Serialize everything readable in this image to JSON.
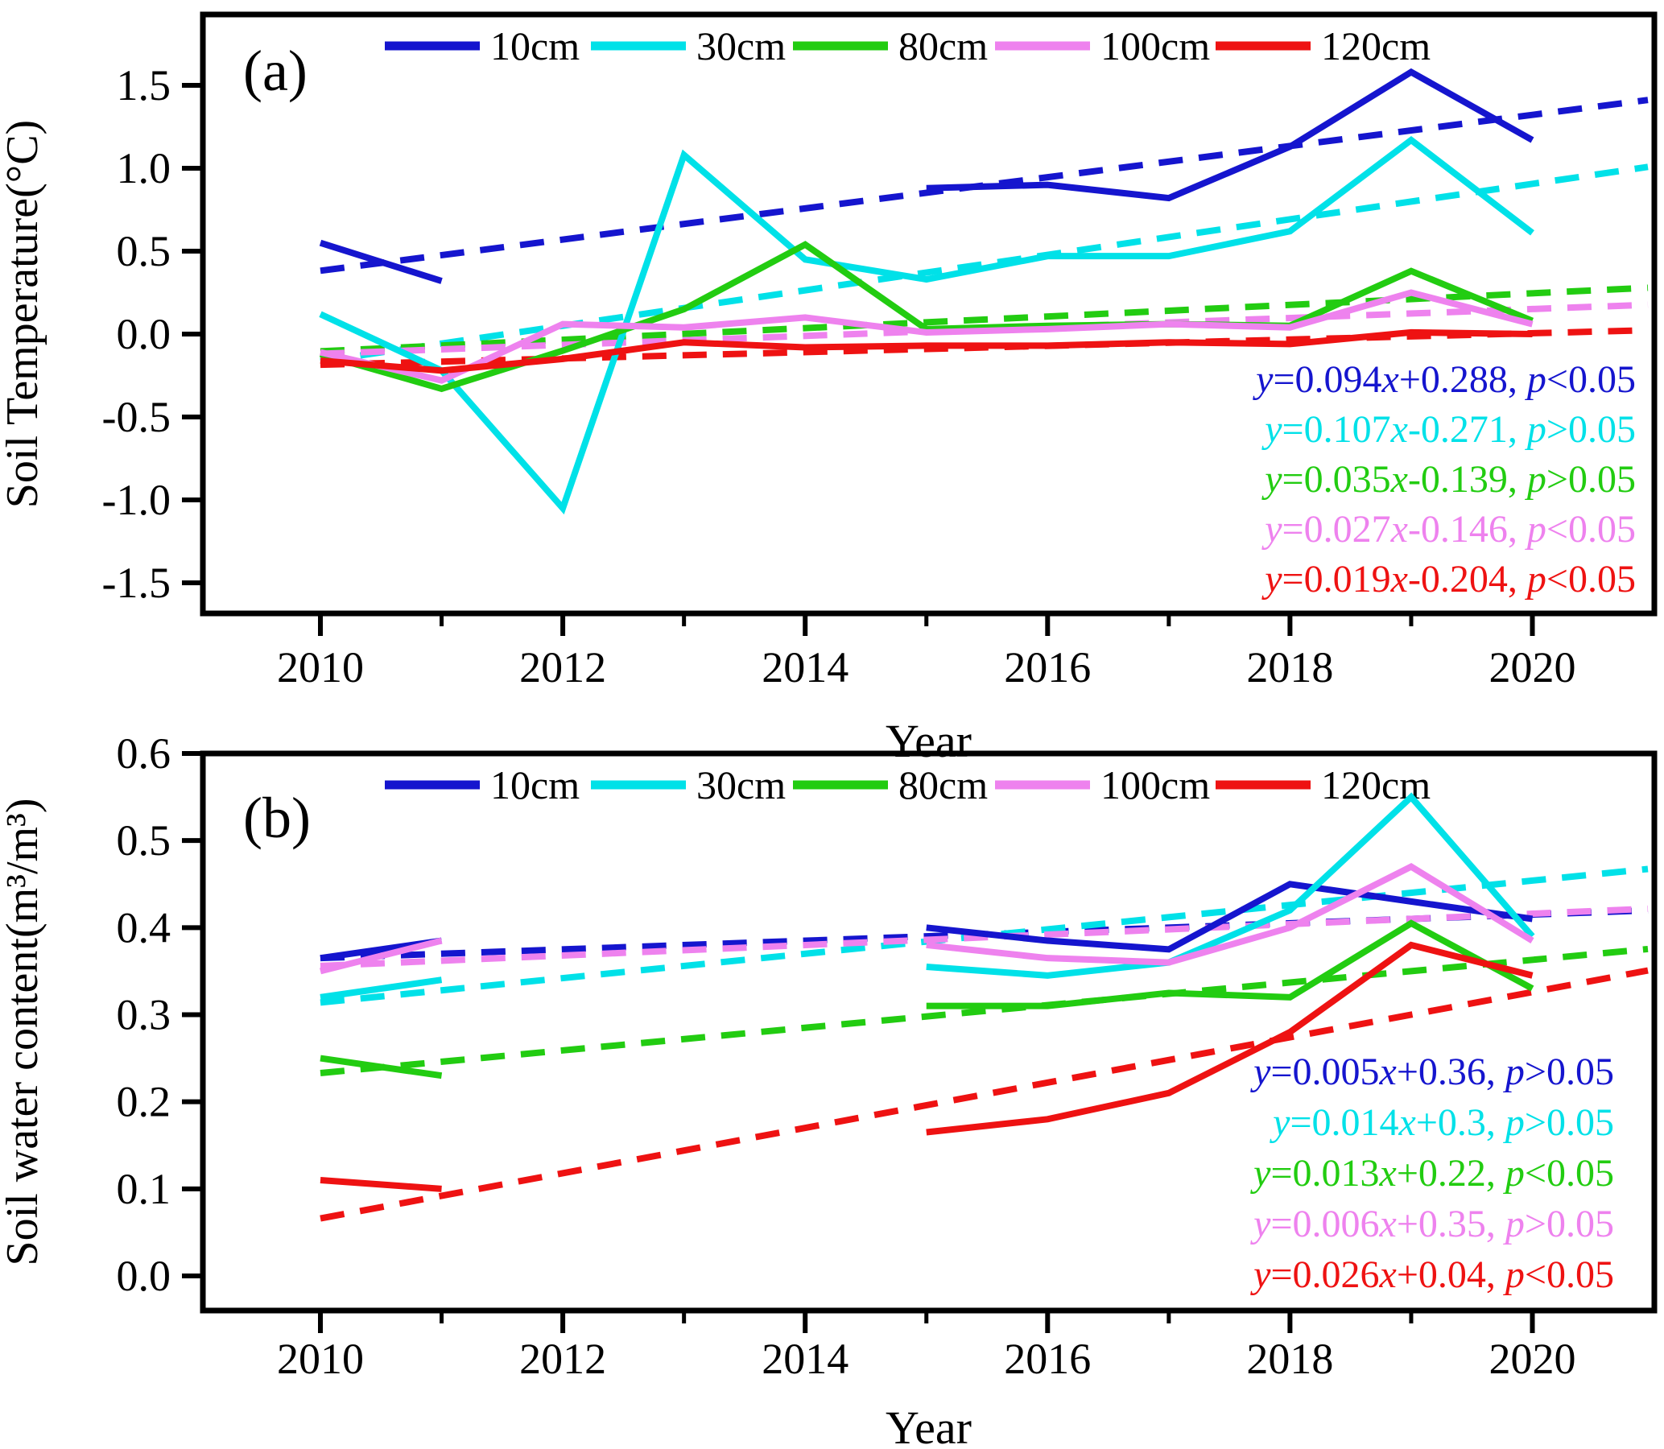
{
  "figure": {
    "x_axis_label": "Year",
    "x_years": [
      2010,
      2011,
      2012,
      2013,
      2014,
      2015,
      2016,
      2017,
      2018,
      2019,
      2020
    ],
    "x_tick_labels": [
      2010,
      2012,
      2014,
      2016,
      2018,
      2020
    ],
    "legend_labels": [
      "10cm",
      "30cm",
      "80cm",
      "100cm",
      "120cm"
    ],
    "colors": {
      "10cm": "#1515ce",
      "30cm": "#00e1e8",
      "80cm": "#22cc11",
      "100cm": "#ee82ee",
      "120cm": "#ee1212",
      "axis": "#000000"
    }
  },
  "chart_data": [
    {
      "type": "line",
      "panel_label": "(a)",
      "title": "",
      "xlabel": "Year",
      "ylabel": "Soil Temperature(°C)",
      "x": [
        2010,
        2011,
        2012,
        2013,
        2014,
        2015,
        2016,
        2017,
        2018,
        2019,
        2020
      ],
      "xlim": [
        2009.03,
        2021.0
      ],
      "ylim": [
        -1.69,
        1.93
      ],
      "yticks": [
        1.5,
        1.0,
        0.5,
        0.0,
        -0.5,
        -1.0,
        -1.5
      ],
      "grid": false,
      "legend_position": "top-inside",
      "series": [
        {
          "name": "10cm",
          "color_key": "10cm",
          "values": [
            0.55,
            0.32,
            null,
            null,
            null,
            0.88,
            0.9,
            0.82,
            1.13,
            1.58,
            1.17
          ],
          "trend": {
            "start": 0.382,
            "end": 1.322
          },
          "equation": "y=0.094x+0.288, p<0.05"
        },
        {
          "name": "30cm",
          "color_key": "30cm",
          "values": [
            0.12,
            -0.22,
            -1.05,
            1.08,
            0.45,
            0.33,
            0.47,
            0.47,
            0.62,
            1.17,
            0.61
          ],
          "trend": {
            "start": -0.164,
            "end": 0.906
          },
          "equation": "y=0.107x-0.271, p>0.05"
        },
        {
          "name": "80cm",
          "color_key": "80cm",
          "values": [
            -0.12,
            -0.33,
            -0.1,
            0.15,
            0.54,
            0.03,
            0.05,
            0.06,
            0.05,
            0.38,
            0.08
          ],
          "trend": {
            "start": -0.104,
            "end": 0.246
          },
          "equation": "y=0.035x-0.139, p>0.05"
        },
        {
          "name": "100cm",
          "color_key": "100cm",
          "values": [
            -0.11,
            -0.28,
            0.06,
            0.04,
            0.1,
            0.01,
            0.03,
            0.06,
            0.04,
            0.25,
            0.06
          ],
          "trend": {
            "start": -0.119,
            "end": 0.151
          },
          "equation": "y=0.027x-0.146, p<0.05"
        },
        {
          "name": "120cm",
          "color_key": "120cm",
          "values": [
            -0.16,
            -0.22,
            -0.15,
            -0.05,
            -0.08,
            -0.07,
            -0.07,
            -0.05,
            -0.06,
            0.01,
            0.0
          ],
          "trend": {
            "start": -0.185,
            "end": 0.005
          },
          "equation": "y=0.019x-0.204, p<0.05"
        }
      ]
    },
    {
      "type": "line",
      "panel_label": "(b)",
      "title": "",
      "xlabel": "Year",
      "ylabel": "Soil water content(m³/m³)",
      "x": [
        2010,
        2011,
        2012,
        2013,
        2014,
        2015,
        2016,
        2017,
        2018,
        2019,
        2020
      ],
      "xlim": [
        2009.03,
        2021.0
      ],
      "ylim": [
        -0.04,
        0.6
      ],
      "yticks": [
        0.6,
        0.5,
        0.4,
        0.3,
        0.2,
        0.1,
        0.0
      ],
      "grid": false,
      "legend_position": "top-inside",
      "series": [
        {
          "name": "10cm",
          "color_key": "10cm",
          "values": [
            0.365,
            0.385,
            null,
            null,
            null,
            0.4,
            0.385,
            0.375,
            0.45,
            0.43,
            0.41
          ],
          "trend": {
            "start": 0.365,
            "end": 0.415
          },
          "equation": "y=0.005x+0.36, p>0.05"
        },
        {
          "name": "30cm",
          "color_key": "30cm",
          "values": [
            0.32,
            0.34,
            null,
            null,
            null,
            0.355,
            0.345,
            0.36,
            0.42,
            0.55,
            0.39
          ],
          "trend": {
            "start": 0.314,
            "end": 0.454
          },
          "equation": "y=0.014x+0.3, p>0.05"
        },
        {
          "name": "80cm",
          "color_key": "80cm",
          "values": [
            0.25,
            0.23,
            null,
            null,
            null,
            0.31,
            0.31,
            0.325,
            0.32,
            0.405,
            0.33
          ],
          "trend": {
            "start": 0.233,
            "end": 0.363
          },
          "equation": "y=0.013x+0.22, p<0.05"
        },
        {
          "name": "100cm",
          "color_key": "100cm",
          "values": [
            0.35,
            0.385,
            null,
            null,
            null,
            0.38,
            0.365,
            0.36,
            0.4,
            0.47,
            0.385
          ],
          "trend": {
            "start": 0.356,
            "end": 0.416
          },
          "equation": "y=0.006x+0.35, p>0.05"
        },
        {
          "name": "120cm",
          "color_key": "120cm",
          "values": [
            0.11,
            0.1,
            null,
            null,
            null,
            0.165,
            0.18,
            0.21,
            0.28,
            0.38,
            0.345
          ],
          "trend": {
            "start": 0.066,
            "end": 0.326
          },
          "equation": "y=0.026x+0.04, p<0.05"
        }
      ]
    }
  ]
}
